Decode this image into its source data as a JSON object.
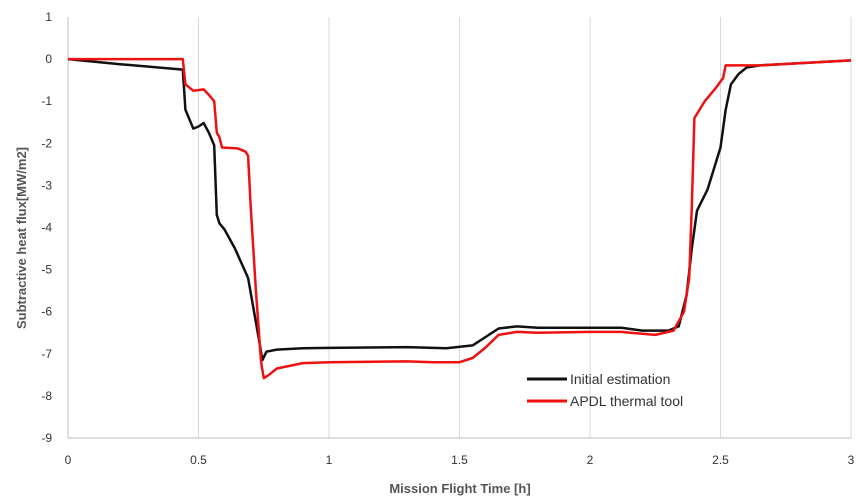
{
  "chart_data": {
    "type": "line",
    "title": "",
    "xlabel": "Mission Flight Time [h]",
    "ylabel": "Subtractive heat flux[MW/m2]",
    "xlim": [
      0,
      3
    ],
    "ylim": [
      -9,
      1
    ],
    "x_ticks": [
      0,
      0.5,
      1,
      1.5,
      2,
      2.5,
      3
    ],
    "x_tick_labels": [
      "0",
      "0.5",
      "1",
      "1.5",
      "2",
      "2.5",
      "3"
    ],
    "y_ticks": [
      1,
      0,
      -1,
      -2,
      -3,
      -4,
      -5,
      -6,
      -7,
      -8,
      -9
    ],
    "y_tick_labels": [
      "1",
      "0",
      "-1",
      "-2",
      "-3",
      "-4",
      "-5",
      "-6",
      "-7",
      "-8",
      "-9"
    ],
    "grid": "vertical",
    "legend_position": "bottom-right",
    "series": [
      {
        "name": "Initial estimation",
        "color": "#111111",
        "points": [
          [
            0,
            0
          ],
          [
            0.2,
            -0.12
          ],
          [
            0.44,
            -0.25
          ],
          [
            0.45,
            -1.2
          ],
          [
            0.48,
            -1.65
          ],
          [
            0.5,
            -1.6
          ],
          [
            0.52,
            -1.52
          ],
          [
            0.54,
            -1.75
          ],
          [
            0.56,
            -2.05
          ],
          [
            0.57,
            -3.7
          ],
          [
            0.58,
            -3.9
          ],
          [
            0.6,
            -4.05
          ],
          [
            0.64,
            -4.5
          ],
          [
            0.69,
            -5.2
          ],
          [
            0.73,
            -6.6
          ],
          [
            0.745,
            -7.15
          ],
          [
            0.76,
            -6.95
          ],
          [
            0.8,
            -6.9
          ],
          [
            0.9,
            -6.87
          ],
          [
            1.0,
            -6.86
          ],
          [
            1.3,
            -6.84
          ],
          [
            1.45,
            -6.87
          ],
          [
            1.55,
            -6.8
          ],
          [
            1.6,
            -6.6
          ],
          [
            1.65,
            -6.4
          ],
          [
            1.72,
            -6.35
          ],
          [
            1.8,
            -6.38
          ],
          [
            2.0,
            -6.38
          ],
          [
            2.12,
            -6.38
          ],
          [
            2.2,
            -6.45
          ],
          [
            2.3,
            -6.45
          ],
          [
            2.34,
            -6.35
          ],
          [
            2.37,
            -5.6
          ],
          [
            2.39,
            -4.5
          ],
          [
            2.41,
            -3.6
          ],
          [
            2.45,
            -3.1
          ],
          [
            2.5,
            -2.1
          ],
          [
            2.52,
            -1.2
          ],
          [
            2.54,
            -0.6
          ],
          [
            2.57,
            -0.35
          ],
          [
            2.6,
            -0.2
          ],
          [
            2.65,
            -0.15
          ],
          [
            2.8,
            -0.1
          ],
          [
            3.0,
            -0.03
          ]
        ]
      },
      {
        "name": "APDL thermal tool",
        "color": "#ee1111",
        "points": [
          [
            0,
            0
          ],
          [
            0.44,
            0
          ],
          [
            0.45,
            -0.6
          ],
          [
            0.48,
            -0.75
          ],
          [
            0.52,
            -0.72
          ],
          [
            0.54,
            -0.85
          ],
          [
            0.56,
            -1.0
          ],
          [
            0.57,
            -1.75
          ],
          [
            0.58,
            -1.85
          ],
          [
            0.59,
            -2.1
          ],
          [
            0.65,
            -2.12
          ],
          [
            0.68,
            -2.2
          ],
          [
            0.69,
            -2.3
          ],
          [
            0.7,
            -3.5
          ],
          [
            0.72,
            -5.5
          ],
          [
            0.74,
            -7.2
          ],
          [
            0.75,
            -7.58
          ],
          [
            0.77,
            -7.5
          ],
          [
            0.8,
            -7.35
          ],
          [
            0.9,
            -7.22
          ],
          [
            1.0,
            -7.2
          ],
          [
            1.3,
            -7.18
          ],
          [
            1.4,
            -7.2
          ],
          [
            1.5,
            -7.2
          ],
          [
            1.55,
            -7.1
          ],
          [
            1.6,
            -6.85
          ],
          [
            1.65,
            -6.55
          ],
          [
            1.72,
            -6.48
          ],
          [
            1.8,
            -6.5
          ],
          [
            2.0,
            -6.48
          ],
          [
            2.12,
            -6.48
          ],
          [
            2.25,
            -6.55
          ],
          [
            2.32,
            -6.45
          ],
          [
            2.36,
            -6.0
          ],
          [
            2.38,
            -5.2
          ],
          [
            2.39,
            -3.5
          ],
          [
            2.4,
            -1.4
          ],
          [
            2.44,
            -1.0
          ],
          [
            2.48,
            -0.7
          ],
          [
            2.51,
            -0.45
          ],
          [
            2.52,
            -0.15
          ],
          [
            2.55,
            -0.15
          ],
          [
            2.65,
            -0.15
          ],
          [
            2.8,
            -0.1
          ],
          [
            3.0,
            -0.03
          ]
        ]
      }
    ]
  }
}
